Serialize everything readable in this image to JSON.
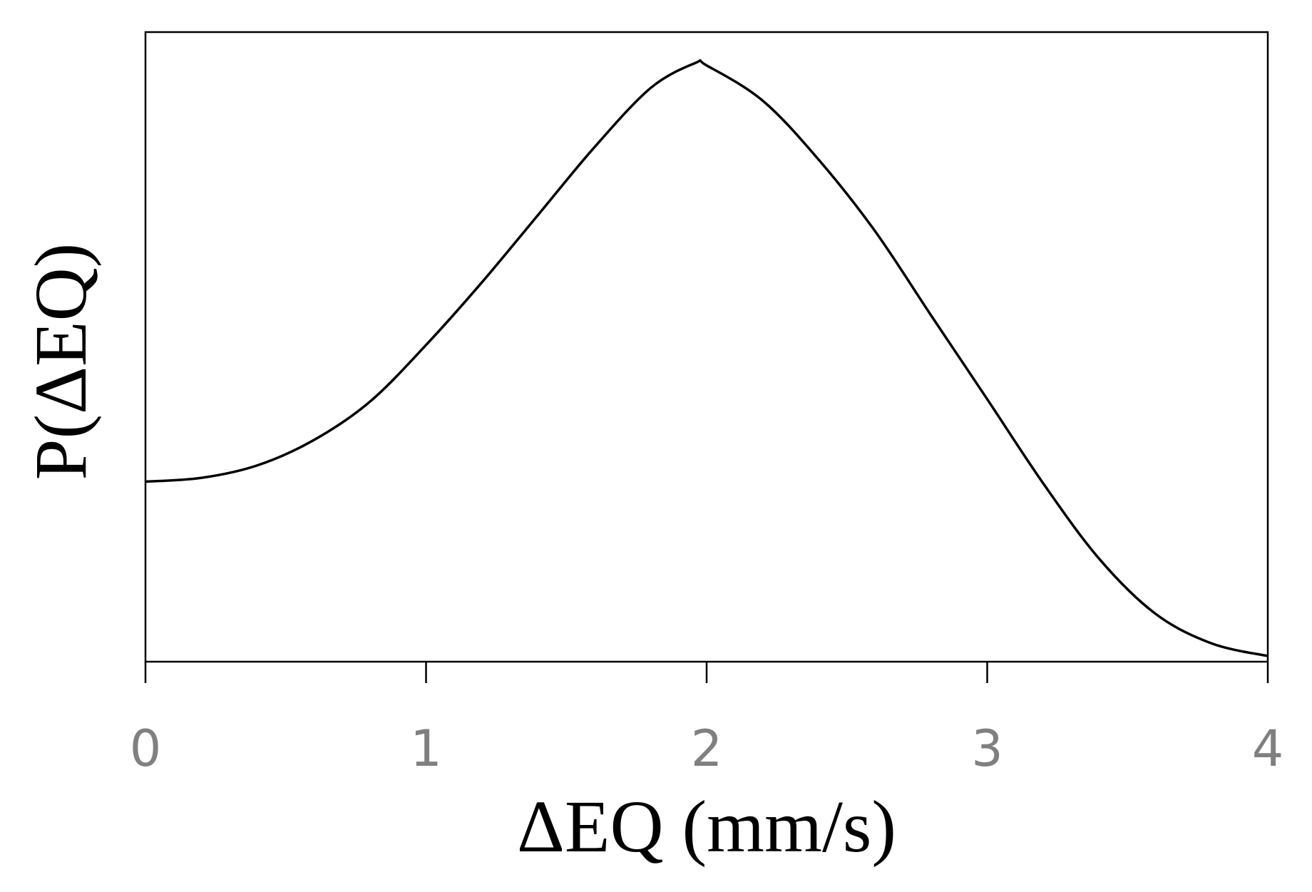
{
  "chart_data": {
    "type": "line",
    "xlabel": "ΔEQ (mm/s)",
    "ylabel": "P(ΔEQ)",
    "x": [
      0,
      0.2,
      0.4,
      0.6,
      0.8,
      1.0,
      1.2,
      1.4,
      1.6,
      1.8,
      1.96,
      2.0,
      2.2,
      2.4,
      2.6,
      2.8,
      3.0,
      3.2,
      3.4,
      3.6,
      3.8,
      4.0
    ],
    "values": [
      0.286,
      0.292,
      0.312,
      0.352,
      0.413,
      0.503,
      0.603,
      0.71,
      0.817,
      0.911,
      0.951,
      0.947,
      0.891,
      0.797,
      0.684,
      0.55,
      0.417,
      0.283,
      0.163,
      0.076,
      0.029,
      0.009
    ],
    "color": "#000000",
    "xlim": [
      0,
      4
    ],
    "xticks": [
      0,
      1,
      2,
      3,
      4
    ],
    "ylim": [
      0,
      1
    ]
  }
}
